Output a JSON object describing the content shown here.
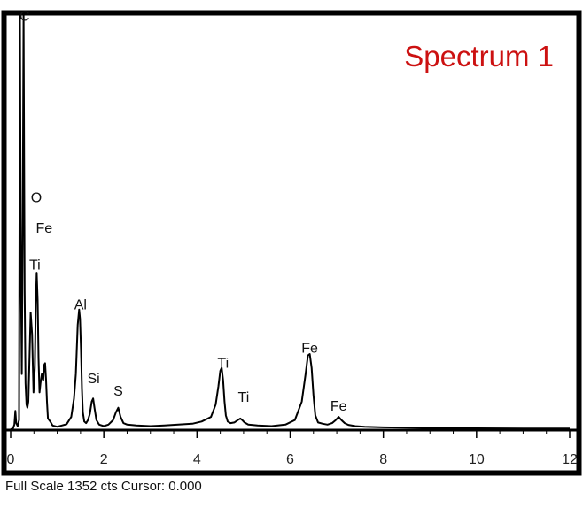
{
  "chart_data": {
    "type": "line",
    "title": "Spectrum 1",
    "xlabel": "",
    "ylabel": "",
    "xlim": [
      0,
      12
    ],
    "ylim": [
      0,
      1352
    ],
    "grid": false,
    "legend": "none",
    "x_ticks": [
      0,
      2,
      4,
      6,
      8,
      10,
      12
    ],
    "series": [
      {
        "x": [
          0.0,
          0.05,
          0.08,
          0.1,
          0.12,
          0.15,
          0.18,
          0.2,
          0.22,
          0.24,
          0.26,
          0.277,
          0.29,
          0.3,
          0.32,
          0.34,
          0.36,
          0.38,
          0.4,
          0.43,
          0.46,
          0.49,
          0.52,
          0.54,
          0.56,
          0.58,
          0.6,
          0.62,
          0.64,
          0.67,
          0.7,
          0.72,
          0.74,
          0.76,
          0.78,
          0.8,
          0.85,
          0.9,
          1.0,
          1.1,
          1.2,
          1.3,
          1.36,
          1.4,
          1.44,
          1.47,
          1.49,
          1.51,
          1.53,
          1.55,
          1.58,
          1.62,
          1.66,
          1.7,
          1.74,
          1.77,
          1.8,
          1.84,
          1.9,
          2.0,
          2.1,
          2.2,
          2.26,
          2.31,
          2.36,
          2.42,
          2.5,
          2.7,
          3.0,
          3.3,
          3.6,
          3.9,
          4.1,
          4.3,
          4.4,
          4.46,
          4.5,
          4.53,
          4.56,
          4.59,
          4.62,
          4.66,
          4.72,
          4.8,
          4.88,
          4.93,
          4.97,
          5.02,
          5.1,
          5.3,
          5.6,
          5.9,
          6.1,
          6.25,
          6.33,
          6.38,
          6.42,
          6.46,
          6.5,
          6.54,
          6.6,
          6.7,
          6.8,
          6.9,
          6.98,
          7.04,
          7.1,
          7.17,
          7.25,
          7.4,
          7.6,
          8.0,
          8.5,
          9.0,
          10.0,
          11.0,
          12.0
        ],
        "y": [
          0,
          2,
          15,
          60,
          20,
          10,
          30,
          1352,
          500,
          180,
          700,
          1352,
          900,
          450,
          150,
          80,
          70,
          90,
          200,
          380,
          310,
          120,
          200,
          410,
          510,
          420,
          230,
          120,
          150,
          180,
          160,
          210,
          215,
          160,
          90,
          35,
          25,
          12,
          8,
          12,
          16,
          40,
          100,
          180,
          340,
          390,
          360,
          260,
          130,
          55,
          25,
          20,
          30,
          50,
          90,
          100,
          70,
          30,
          15,
          10,
          15,
          30,
          55,
          70,
          40,
          20,
          15,
          12,
          10,
          12,
          15,
          18,
          25,
          40,
          80,
          140,
          190,
          200,
          160,
          90,
          45,
          25,
          20,
          22,
          30,
          35,
          30,
          22,
          15,
          12,
          10,
          15,
          30,
          90,
          180,
          240,
          245,
          200,
          110,
          45,
          22,
          18,
          15,
          20,
          30,
          40,
          30,
          20,
          14,
          10,
          8,
          6,
          5,
          4,
          3,
          2,
          2
        ]
      }
    ],
    "peak_labels": [
      {
        "label": "C",
        "x": 0.3,
        "y": 1330
      },
      {
        "label": "O",
        "x": 0.55,
        "y": 740
      },
      {
        "label": "Fe",
        "x": 0.72,
        "y": 640
      },
      {
        "label": "Ti",
        "x": 0.52,
        "y": 520
      },
      {
        "label": "Al",
        "x": 1.5,
        "y": 390
      },
      {
        "label": "Si",
        "x": 1.78,
        "y": 150
      },
      {
        "label": "S",
        "x": 2.31,
        "y": 110
      },
      {
        "label": "Ti",
        "x": 4.56,
        "y": 200
      },
      {
        "label": "Ti",
        "x": 5.0,
        "y": 90
      },
      {
        "label": "Fe",
        "x": 6.42,
        "y": 250
      },
      {
        "label": "Fe",
        "x": 7.04,
        "y": 60
      }
    ]
  },
  "status": {
    "text": "Full Scale 1352 cts Cursor: 0.000"
  },
  "colors": {
    "frame": "#000000",
    "spectrum": "#000000",
    "title": "#cc1111"
  }
}
